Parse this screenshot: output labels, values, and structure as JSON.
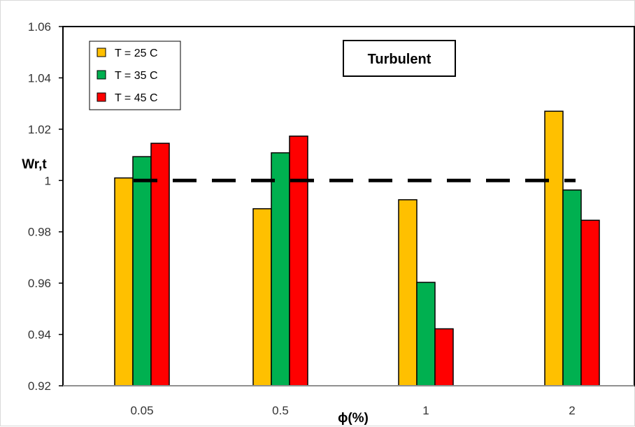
{
  "chart_data": {
    "type": "bar",
    "title": "",
    "xlabel": "ϕ(%)",
    "ylabel": "Wr,t",
    "categories": [
      "0.05",
      "0.5",
      "1",
      "2"
    ],
    "series": [
      {
        "name": "T = 25 C",
        "color": "#FFC000",
        "values": [
          1.001,
          0.989,
          0.9925,
          1.027
        ]
      },
      {
        "name": "T = 35 C",
        "color": "#00B050",
        "values": [
          1.0093,
          1.0108,
          0.9603,
          0.9963
        ]
      },
      {
        "name": "T = 45 C",
        "color": "#FF0000",
        "values": [
          1.0145,
          1.0173,
          0.9422,
          0.9845
        ]
      }
    ],
    "ylim": [
      0.92,
      1.06
    ],
    "yticks": [
      "0.92",
      "0.94",
      "0.96",
      "0.98",
      "1",
      "1.02",
      "1.04",
      "1.06"
    ],
    "grid": false,
    "legend_position": "top-left",
    "reference_line": {
      "y": 1,
      "style": "dashed",
      "color": "#000000"
    },
    "annotation": "Turbulent"
  }
}
